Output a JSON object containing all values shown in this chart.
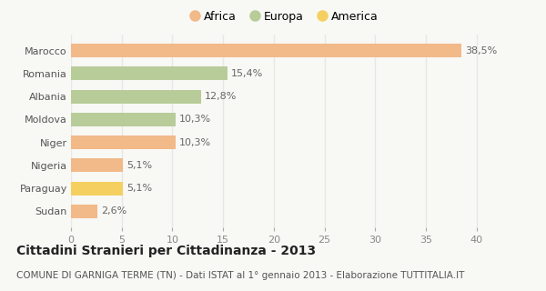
{
  "categories": [
    "Sudan",
    "Paraguay",
    "Nigeria",
    "Niger",
    "Moldova",
    "Albania",
    "Romania",
    "Marocco"
  ],
  "values": [
    2.6,
    5.1,
    5.1,
    10.3,
    10.3,
    12.8,
    15.4,
    38.5
  ],
  "labels": [
    "2,6%",
    "5,1%",
    "5,1%",
    "10,3%",
    "10,3%",
    "12,8%",
    "15,4%",
    "38,5%"
  ],
  "colors": [
    "#f2b989",
    "#f5d060",
    "#f2b989",
    "#f2b989",
    "#b8cc99",
    "#b8cc99",
    "#b8cc99",
    "#f2b989"
  ],
  "legend": [
    {
      "label": "Africa",
      "color": "#f2b989"
    },
    {
      "label": "Europa",
      "color": "#b8cc99"
    },
    {
      "label": "America",
      "color": "#f5d060"
    }
  ],
  "xlim": [
    0,
    42
  ],
  "xticks": [
    0,
    5,
    10,
    15,
    20,
    25,
    30,
    35,
    40
  ],
  "title": "Cittadini Stranieri per Cittadinanza - 2013",
  "subtitle": "COMUNE DI GARNIGA TERME (TN) - Dati ISTAT al 1° gennaio 2013 - Elaborazione TUTTITALIA.IT",
  "background_color": "#f8f8f5",
  "grid_color": "#e8e8e8",
  "bar_height": 0.6,
  "title_fontsize": 10,
  "subtitle_fontsize": 7.5,
  "label_fontsize": 8,
  "tick_fontsize": 8,
  "legend_fontsize": 9
}
